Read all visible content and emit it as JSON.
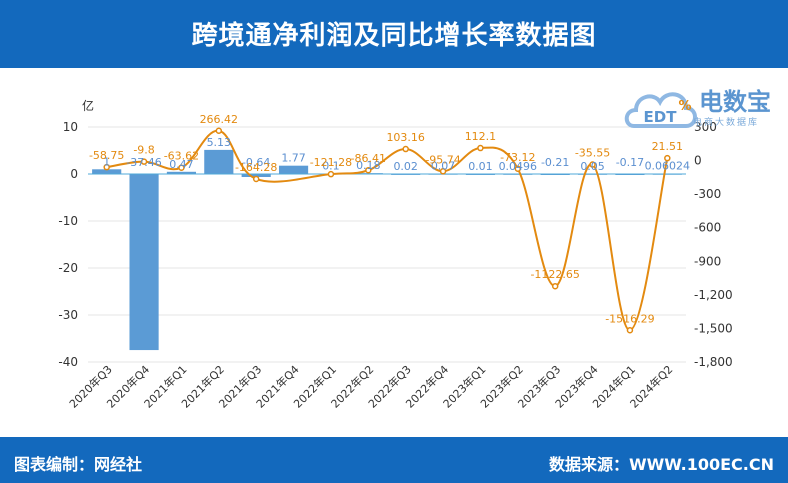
{
  "header": {
    "title": "跨境通净利润及同比增长率数据图"
  },
  "footer": {
    "left": "图表编制：网经社",
    "right": "数据来源：WWW.100EC.CN"
  },
  "logo": {
    "brand": "电数宝",
    "sub": "电商大数据库",
    "mark": "EDT"
  },
  "colors": {
    "header_bg": "#1369bd",
    "bar": "#5b9bd5",
    "line": "#e38a10",
    "label_bar": "#5b8fd0",
    "label_line": "#e38a10",
    "axis": "#333333"
  },
  "chart_data": {
    "type": "bar+line",
    "categories": [
      "2020年Q3",
      "2020年Q4",
      "2021年Q1",
      "2021年Q2",
      "2021年Q3",
      "2021年Q4",
      "2022年Q1",
      "2022年Q2",
      "2022年Q3",
      "2022年Q4",
      "2023年Q1",
      "2023年Q2",
      "2023年Q3",
      "2023年Q4",
      "2024年Q1",
      "2024年Q2"
    ],
    "series": [
      {
        "name": "",
        "type": "bar",
        "axis": "left",
        "values": [
          1,
          -37.46,
          0.47,
          5.13,
          -0.64,
          1.77,
          0.1,
          0.18,
          0.02,
          0.07,
          0.01,
          0.0496,
          -0.21,
          0.05,
          -0.17,
          0.06024
        ],
        "labels": [
          "1",
          "-37.46",
          "0.47",
          "5.13",
          "-0.64",
          "1.77",
          "0.1",
          "0.18",
          "0.02",
          "0.07",
          "0.01",
          "0.0496",
          "-0.21",
          "0.05",
          "-0.17",
          "0.06024"
        ]
      },
      {
        "name": "",
        "type": "line",
        "axis": "right",
        "values": [
          -58.75,
          -9.8,
          -63.62,
          266.42,
          -164.28,
          null,
          -121.28,
          -86.41,
          103.16,
          -95.74,
          112.1,
          -73.12,
          -1122.65,
          -35.55,
          -1516.29,
          21.51
        ],
        "labels": [
          "-58.75",
          "-9.8",
          "-63.62",
          "266.42",
          "-164.28",
          "",
          "-121.28",
          "-86.41",
          "103.16",
          "-95.74",
          "112.1",
          "-73.12",
          "-1122.65",
          "-35.55",
          "-1516.29",
          "21.51"
        ]
      }
    ],
    "left_axis": {
      "unit": "亿",
      "min": -40,
      "max": 10,
      "ticks": [
        "10",
        "0",
        "-10",
        "-20",
        "-30",
        "-40"
      ]
    },
    "right_axis": {
      "unit": "%",
      "min": -1800,
      "max": 300,
      "ticks": [
        "300",
        "0",
        "-300",
        "-600",
        "-900",
        "-1,200",
        "-1,500",
        "-1,800"
      ]
    },
    "grid": true,
    "legend": "none"
  }
}
